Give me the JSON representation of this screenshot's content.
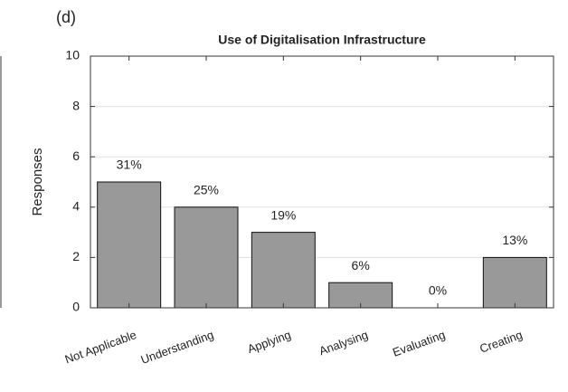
{
  "chart_data": {
    "type": "bar",
    "panel_label": "(d)",
    "title": "Use of Digitalisation Infrastructure",
    "ylabel": "Responses",
    "categories": [
      "Not Applicable",
      "Understanding",
      "Applying",
      "Analysing",
      "Evaluating",
      "Creating"
    ],
    "values": [
      5,
      4,
      3,
      1,
      0,
      2
    ],
    "share_labels": [
      "31%",
      "25%",
      "19%",
      "6%",
      "0%",
      "13%"
    ],
    "color": "#999999",
    "ylim": [
      0,
      10
    ],
    "yticks": [
      0,
      2,
      4,
      6,
      8,
      10
    ],
    "grid": true
  }
}
